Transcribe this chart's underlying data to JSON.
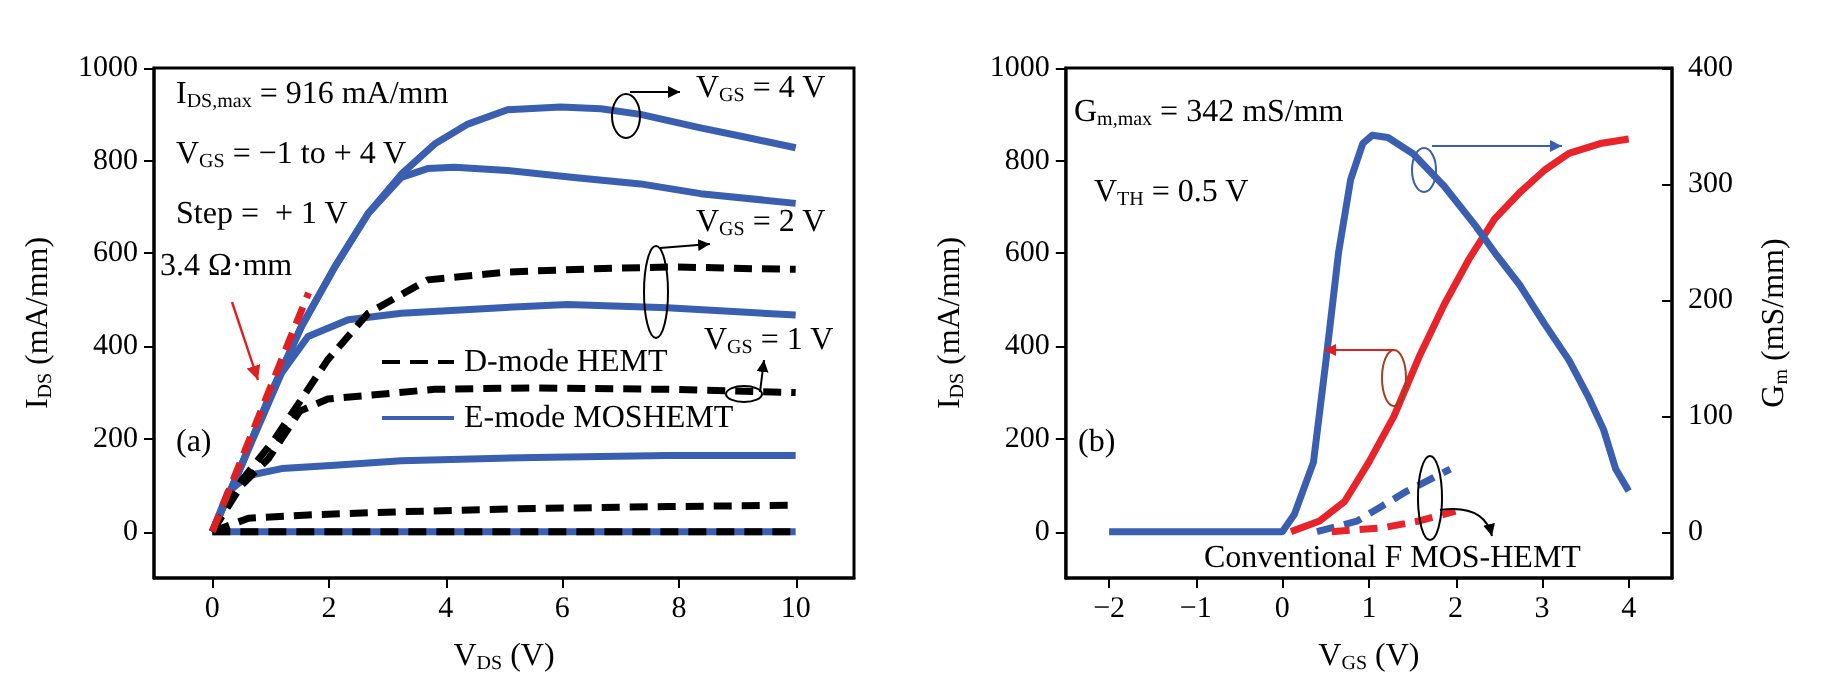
{
  "chart_data": [
    {
      "type": "line",
      "xlabel": "V$_{DS}$ (V)",
      "ylabel": "I$_{DS}$ (mA/mm)",
      "xlim": [
        -1,
        11
      ],
      "xticks": [
        0,
        2,
        4,
        6,
        8,
        10
      ],
      "ylim": [
        -100,
        1000
      ],
      "yticks": [
        0,
        200,
        400,
        600,
        800,
        1000
      ],
      "marker": "none",
      "legend": "center",
      "annotations": [
        "I$_{DS,max}$ = 916 mA/mm",
        "V$_{GS}$ = −1 to + 4 V",
        "Step =  + 1 V",
        "3.4 Ω·mm",
        "V$_{GS}$ = 4 V",
        "V$_{GS}$ = 2 V",
        "V$_{GS}$ = 1 V",
        "(a)"
      ],
      "series": [
        {
          "name": "D-mode HEMT",
          "color": "#000000",
          "line_style": "dashed",
          "x": [
            0,
            0.5,
            1.07,
            1.53,
            1.98,
            2.67,
            3.69,
            5.06,
            6.55,
            7.91,
            9.34,
            10
          ],
          "values": [
            0,
            110,
            200,
            286,
            371,
            471,
            543,
            560,
            567,
            571,
            567,
            566
          ]
        },
        {
          "color": "#000000",
          "line_style": "dashed",
          "x": [
            0,
            0.5,
            0.96,
            1.5,
            1.98,
            3.81,
            5.52,
            7.8,
            10
          ],
          "values": [
            0,
            100,
            157,
            260,
            286,
            307,
            310,
            307,
            300
          ]
        },
        {
          "color": "#000000",
          "line_style": "dashed",
          "x": [
            0,
            0.62,
            1.64,
            3.24,
            5.52,
            7.8,
            10
          ],
          "values": [
            0,
            29,
            36,
            43,
            50,
            54,
            57
          ]
        },
        {
          "color": "#000000",
          "line_style": "dashed",
          "x": [
            0,
            10
          ],
          "values": [
            0,
            0
          ]
        },
        {
          "name": "E-mode MOSHEMT",
          "color": "#3a5fb0",
          "line_style": "solid",
          "x": [
            0,
            0.5,
            0.96,
            1.53,
            2.1,
            2.67,
            3.24,
            3.81,
            4.38,
            5.06,
            5.97,
            6.66,
            7.34,
            8.37,
            9.17,
            10
          ],
          "values": [
            0,
            143,
            286,
            443,
            571,
            686,
            771,
            836,
            879,
            910,
            916,
            912,
            900,
            871,
            850,
            828
          ]
        },
        {
          "color": "#3a5fb0",
          "line_style": "solid",
          "x": [
            0,
            0.5,
            0.96,
            1.53,
            2.1,
            2.67,
            3.24,
            3.69,
            4.15,
            5.06,
            6.2,
            7.34,
            8.37,
            10
          ],
          "values": [
            0,
            143,
            286,
            443,
            571,
            686,
            764,
            783,
            786,
            779,
            764,
            750,
            729,
            708
          ]
        },
        {
          "color": "#3a5fb0",
          "line_style": "solid",
          "x": [
            0,
            0.5,
            1.19,
            1.64,
            2.33,
            3.24,
            4.95,
            6.09,
            7.8,
            10
          ],
          "values": [
            0,
            143,
            343,
            421,
            457,
            471,
            483,
            490,
            483,
            467
          ]
        },
        {
          "color": "#3a5fb0",
          "line_style": "solid",
          "x": [
            0,
            0.27,
            0.62,
            1.19,
            2.1,
            3.24,
            5.52,
            7.8,
            10
          ],
          "values": [
            0,
            86,
            121,
            136,
            143,
            153,
            160,
            164,
            164
          ]
        },
        {
          "color": "#3a5fb0",
          "line_style": "solid",
          "x": [
            0,
            10
          ],
          "values": [
            0,
            0
          ]
        },
        {
          "color": "#e02020",
          "line_style": "dashed",
          "x": [
            0,
            1.65
          ],
          "values": [
            0,
            515
          ]
        }
      ]
    },
    {
      "type": "line",
      "xlabel": "V$_{GS}$ (V)",
      "ylabel": "I$_{DS}$ (mA/mm)",
      "y2label": "G$_{m}$ (mS/mm)",
      "xlim": [
        -2.5,
        4.5
      ],
      "xticks": [
        -2,
        -1,
        0,
        1,
        2,
        3,
        4
      ],
      "ylim": [
        -100,
        1000
      ],
      "yticks": [
        0,
        200,
        400,
        600,
        800,
        1000
      ],
      "y2lim": [
        -40,
        400
      ],
      "y2ticks": [
        0,
        100,
        200,
        300,
        400
      ],
      "marker": "none",
      "annotations": [
        "G$_{m,max}$ = 342 mS/mm",
        "V$_{TH}$ = 0.5 V",
        "(b)",
        "Conventional F MOS-HEMT"
      ],
      "series": [
        {
          "color": "#e8242a",
          "line_style": "solid",
          "x": [
            0.1,
            0.43,
            0.72,
            1.0,
            1.29,
            1.58,
            1.87,
            2.16,
            2.45,
            2.74,
            3.03,
            3.31,
            3.67,
            4.0
          ],
          "values": [
            0,
            23,
            65,
            150,
            249,
            377,
            490,
            589,
            674,
            731,
            780,
            816,
            837,
            847
          ]
        },
        {
          "color": "#3a5fb0",
          "line_style": "solid",
          "axis": "y2",
          "x": [
            -2,
            0,
            0.14,
            0.36,
            0.5,
            0.65,
            0.79,
            0.93,
            1.04,
            1.22,
            1.51,
            1.87,
            2.23,
            2.45,
            2.74,
            3.03,
            3.31,
            3.53,
            3.71,
            3.85,
            4.0
          ],
          "values": [
            0,
            0,
            15,
            60,
            145,
            241,
            304,
            335,
            342,
            340,
            326,
            298,
            264,
            241,
            213,
            179,
            148,
            117,
            88,
            54,
            35
          ]
        },
        {
          "color": "#3a5fb0",
          "line_style": "dashed",
          "axis": "y2",
          "x": [
            0.4,
            0.86,
            1.15,
            1.44,
            1.94
          ],
          "values": [
            0,
            9,
            22,
            35,
            54
          ]
        },
        {
          "color": "#e8242a",
          "line_style": "dashed",
          "x": [
            0.57,
            1.15,
            1.58,
            2.0
          ],
          "values": [
            0,
            8,
            23,
            44
          ]
        }
      ]
    }
  ]
}
